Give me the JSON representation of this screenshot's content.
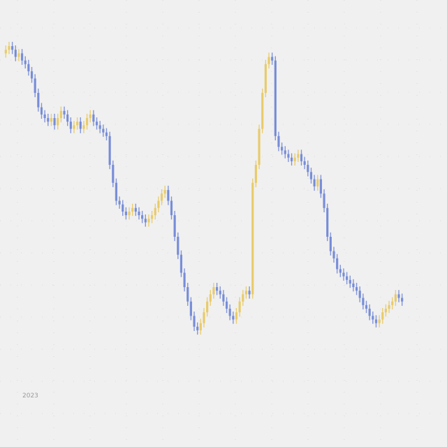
{
  "chart_data": {
    "type": "candlestick",
    "title": "",
    "xlabel": "",
    "ylabel": "",
    "grid": true,
    "x_tick_labels": [
      "2023"
    ],
    "up_color": "#e8c860",
    "down_color": "#6f86d6",
    "background_color": "#f0f0f0",
    "grid_color": "#c9c9c9",
    "ylim": [
      0,
      100
    ],
    "series": [
      {
        "closes": [
          92,
          93,
          92,
          90,
          91,
          89,
          88,
          86,
          84,
          80,
          76,
          74,
          73,
          72,
          73,
          71,
          73,
          75,
          74,
          72,
          70,
          71,
          72,
          70,
          71,
          73,
          74,
          72,
          71,
          70,
          69,
          68,
          60,
          55,
          50,
          49,
          47,
          46,
          47,
          48,
          47,
          46,
          45,
          44,
          45,
          46,
          48,
          50,
          52,
          53,
          50,
          46,
          40,
          35,
          30,
          26,
          22,
          18,
          15,
          14,
          16,
          19,
          22,
          24,
          26,
          25,
          24,
          22,
          20,
          18,
          17,
          19,
          22,
          24,
          25,
          24,
          55,
          60,
          70,
          80,
          88,
          90,
          89,
          68,
          65,
          64,
          63,
          62,
          61,
          62,
          63,
          61,
          60,
          58,
          56,
          54,
          56,
          52,
          48,
          40,
          36,
          34,
          31,
          30,
          29,
          28,
          27,
          26,
          25,
          23,
          21,
          20,
          18,
          17,
          16,
          17,
          19,
          20,
          21,
          22,
          24,
          23,
          22
        ]
      }
    ]
  }
}
